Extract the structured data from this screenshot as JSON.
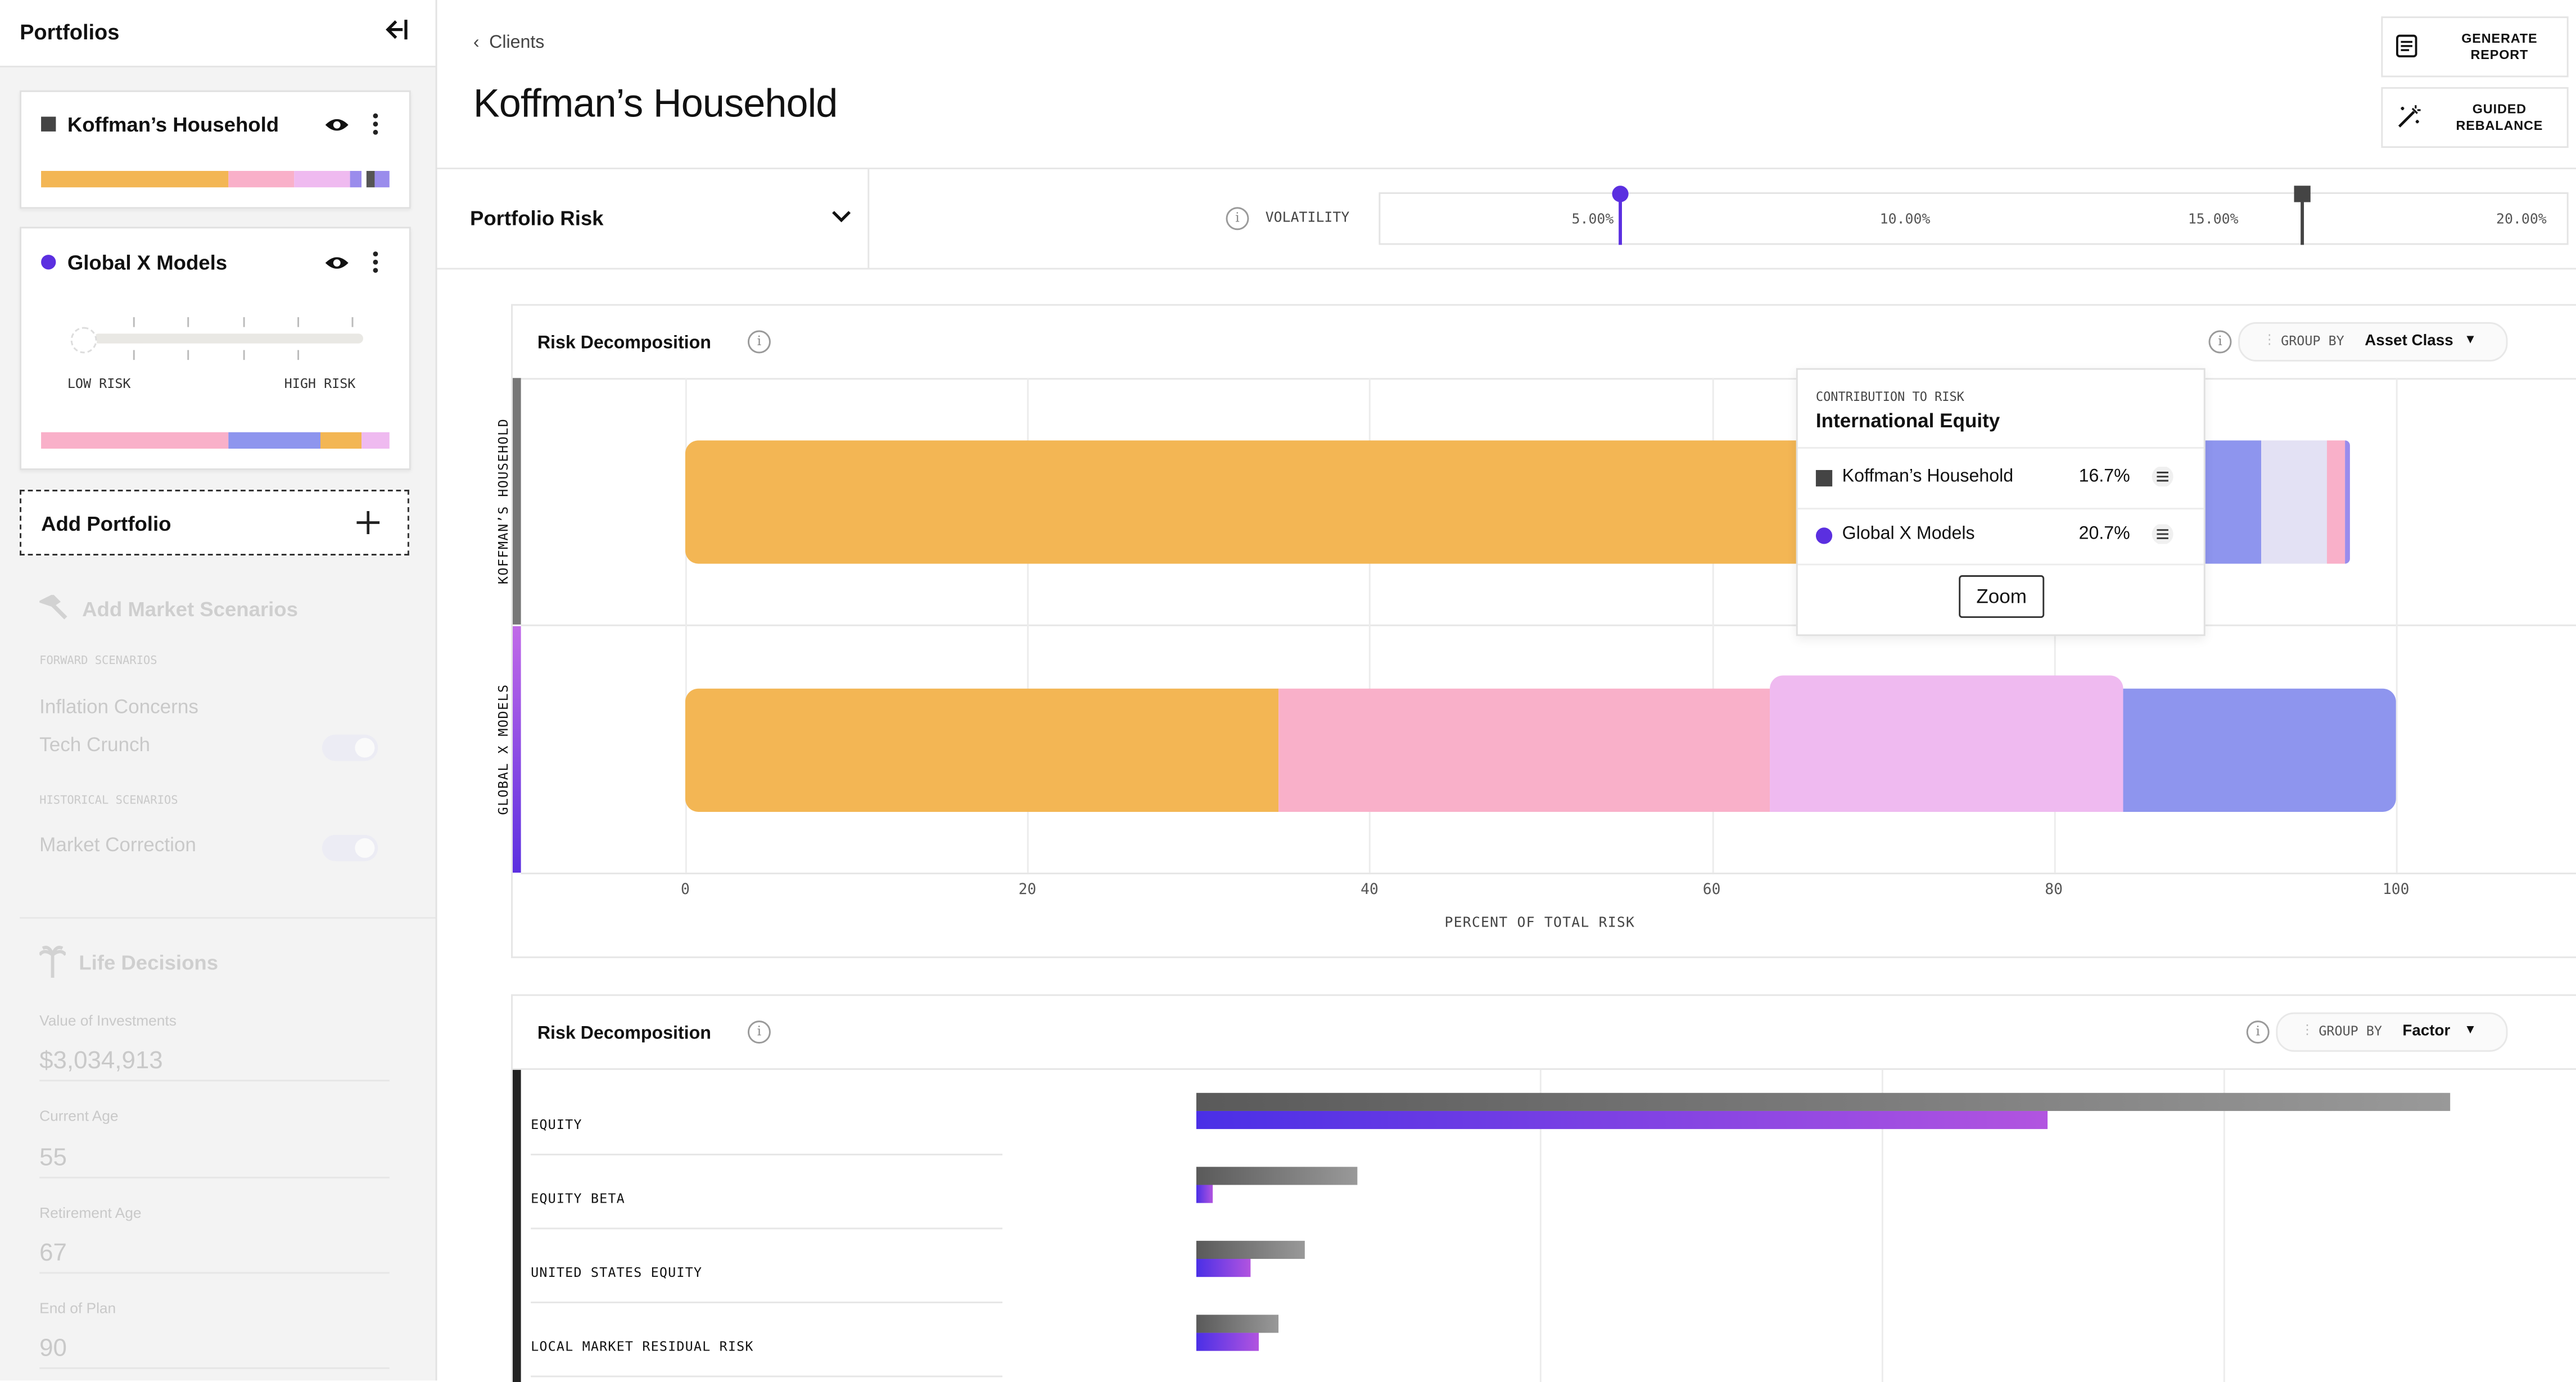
{
  "sidebar": {
    "title": "Portfolios",
    "collapse_icon": "collapse-left-icon",
    "portfolios": [
      {
        "name": "Koffman’s Household",
        "marker": "square",
        "marker_color": "#4a4a4a",
        "allocation_bar": [
          {
            "label": "segment",
            "fraction": 0.54,
            "color": "#f3b654"
          },
          {
            "label": "segment",
            "fraction": 0.185,
            "color": "#f9b0c9"
          },
          {
            "label": "segment",
            "fraction": 0.16,
            "color": "#efbaf0"
          },
          {
            "label": "segment",
            "fraction": 0.035,
            "color": "#9a8cec"
          },
          {
            "label": "segment",
            "fraction": 0.015,
            "color": "#ffffff"
          },
          {
            "label": "segment",
            "fraction": 0.025,
            "color": "#555555"
          },
          {
            "label": "segment",
            "fraction": 0.04,
            "color": "#9a8cec"
          }
        ]
      },
      {
        "name": "Global X Models",
        "marker": "dot",
        "marker_color": "#5b2fe0",
        "risk_low_label": "LOW RISK",
        "risk_high_label": "HIGH RISK",
        "allocation_bar": [
          {
            "label": "segment",
            "fraction": 0.54,
            "color": "#f9b0c9"
          },
          {
            "label": "segment",
            "fraction": 0.26,
            "color": "#8e95ee"
          },
          {
            "label": "segment",
            "fraction": 0.12,
            "color": "#f3b654"
          },
          {
            "label": "segment",
            "fraction": 0.08,
            "color": "#efbaf0"
          }
        ]
      }
    ],
    "add_portfolio_label": "Add Portfolio",
    "market_scenarios": {
      "title": "Add Market Scenarios",
      "forward_label": "FORWARD SCENARIOS",
      "forward": [
        "Inflation Concerns",
        "Tech Crunch"
      ],
      "historical_label": "HISTORICAL SCENARIOS",
      "historical": [
        "Market Correction"
      ]
    },
    "life_decisions": {
      "title": "Life Decisions",
      "fields": [
        {
          "label": "Value of Investments",
          "value": "$3,034,913"
        },
        {
          "label": "Current Age",
          "value": "55"
        },
        {
          "label": "Retirement Age",
          "value": "67"
        },
        {
          "label": "End of Plan",
          "value": "90"
        }
      ]
    }
  },
  "header": {
    "breadcrumb": "Clients",
    "title": "Koffman’s Household",
    "generate_report": "GENERATE REPORT",
    "guided_rebalance": "GUIDED REBALANCE"
  },
  "risk_selector": {
    "label": "Portfolio Risk",
    "volatility_label": "VOLATILITY",
    "ticks": [
      "5.00%",
      "10.00%",
      "15.00%",
      "20.00%"
    ],
    "tick_values": [
      5,
      10,
      15,
      20
    ],
    "range": [
      1.15,
      20.4
    ],
    "markers": [
      {
        "portfolio": "Global X Models",
        "value": 5.05,
        "color": "#5b2fe0",
        "shape": "dot"
      },
      {
        "portfolio": "Koffman’s Household",
        "value": 16.1,
        "color": "#444444",
        "shape": "square"
      }
    ]
  },
  "risk_decomposition_asset": {
    "title": "Risk Decomposition",
    "group_by_label": "GROUP BY",
    "group_by_value": "Asset Class",
    "chart_data": {
      "type": "bar",
      "orientation": "horizontal-stacked",
      "categories": [
        "KOFFMAN’S HOUSEHOLD",
        "GLOBAL X MODELS"
      ],
      "category_colors": [
        "#777777",
        "#8a3cf0"
      ],
      "xlabel": "PERCENT OF TOTAL RISK",
      "xlim": [
        0,
        100
      ],
      "xticks": [
        0,
        20,
        40,
        60,
        80,
        100
      ],
      "series": [
        {
          "values": [
            69.3,
            34.7
          ],
          "color": "#f3b654"
        },
        {
          "values": [
            0,
            28.7
          ],
          "color": "#f9b0c9"
        },
        {
          "values": [
            0,
            20.7
          ],
          "color": "#efbaf0"
        },
        {
          "values": [
            16.7,
            0
          ],
          "color": "#cfc8f5"
        },
        {
          "values": [
            6.1,
            15.9
          ],
          "color": "#8e95ee"
        },
        {
          "values": [
            3.9,
            0
          ],
          "color": "#e3e1f4"
        },
        {
          "values": [
            1.0,
            0
          ],
          "color": "#f9b0c9"
        },
        {
          "values": [
            0.3,
            0
          ],
          "color": "#9a8cec"
        }
      ]
    },
    "tooltip": {
      "caption": "CONTRIBUTION TO RISK",
      "title": "International Equity",
      "rows": [
        {
          "name": "Koffman’s Household",
          "value": "16.7%",
          "marker": "square",
          "color": "#444444"
        },
        {
          "name": "Global X Models",
          "value": "20.7%",
          "marker": "dot",
          "color": "#5b2fe0"
        }
      ],
      "zoom_label": "Zoom"
    }
  },
  "risk_decomposition_factor": {
    "title": "Risk Decomposition",
    "group_by_label": "GROUP BY",
    "group_by_value": "Factor",
    "chart_data": {
      "type": "bar",
      "orientation": "horizontal-grouped",
      "categories": [
        "EQUITY",
        "EQUITY BETA",
        "UNITED STATES EQUITY",
        "LOCAL MARKET RESIDUAL RISK"
      ],
      "xlim": [
        0,
        100
      ],
      "series": [
        {
          "name": "Koffman’s Household",
          "values": [
            91.5,
            11.8,
            7.9,
            6.0
          ],
          "color": "#666666"
        },
        {
          "name": "Global X Models",
          "values": [
            62.1,
            1.2,
            4.0,
            4.6
          ],
          "color": "#5b2fe0"
        }
      ]
    }
  }
}
